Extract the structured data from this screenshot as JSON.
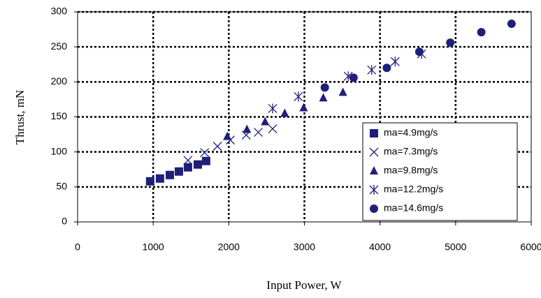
{
  "chart_data": {
    "type": "scatter",
    "x_label": "Input Power, W",
    "y_label": "Thrust, mN",
    "xlim": [
      0,
      6000
    ],
    "xticks": [
      0,
      1000,
      2000,
      3000,
      4000,
      5000,
      6000
    ],
    "ylim": [
      0,
      300
    ],
    "yticks": [
      0,
      50,
      100,
      150,
      200,
      250,
      300
    ],
    "grid": true,
    "legend": "lower right",
    "series": [
      {
        "name": "ma=4.9mg/s",
        "color": "#1f1f7a",
        "marker": "square",
        "x": [
          960,
          1090,
          1220,
          1340,
          1460,
          1590,
          1700
        ],
        "values": [
          58,
          62,
          67,
          72,
          78,
          82,
          87
        ]
      },
      {
        "name": "ma=7.3mg/s",
        "color": "#1f1f7a",
        "marker": "x",
        "x": [
          1460,
          1680,
          1850,
          2020,
          2230,
          2390,
          2580
        ],
        "values": [
          88,
          99,
          108,
          117,
          124,
          128,
          133
        ]
      },
      {
        "name": "ma=9.8mg/s",
        "color": "#1f1f7a",
        "marker": "triangle",
        "x": [
          1980,
          2240,
          2480,
          2740,
          2990,
          3250,
          3510
        ],
        "values": [
          122,
          132,
          143,
          155,
          163,
          177,
          185
        ]
      },
      {
        "name": "ma=12.2mg/s",
        "color": "#1f1f7a",
        "marker": "asterisk",
        "x": [
          2580,
          2920,
          3580,
          3890,
          4200,
          4550
        ],
        "values": [
          162,
          179,
          208,
          217,
          229,
          240
        ]
      },
      {
        "name": "ma=14.6mg/s",
        "color": "#1f1f7a",
        "marker": "circle",
        "x": [
          3270,
          3650,
          4090,
          4520,
          4930,
          5340,
          5740
        ],
        "values": [
          192,
          206,
          220,
          243,
          256,
          271,
          283
        ]
      }
    ]
  }
}
